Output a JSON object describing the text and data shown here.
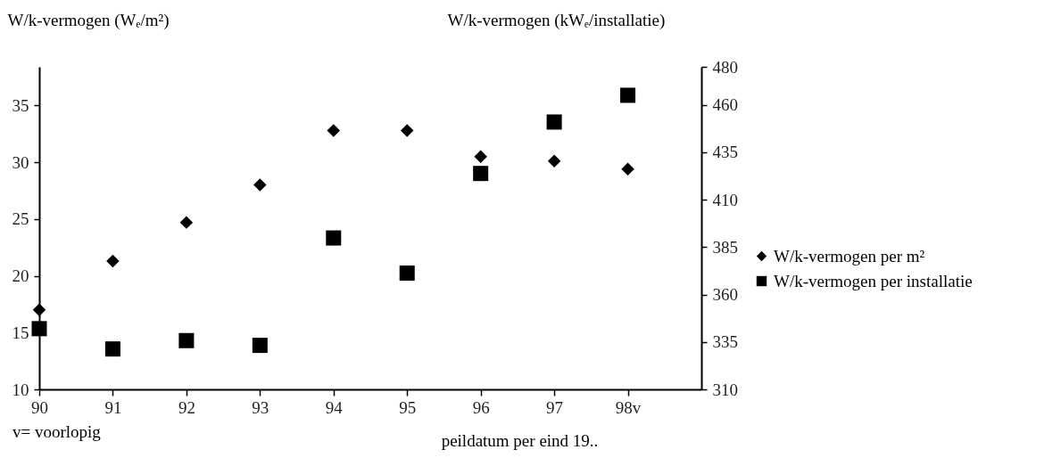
{
  "chart_data": {
    "type": "scatter",
    "categories": [
      "90",
      "91",
      "92",
      "93",
      "94",
      "95",
      "96",
      "97",
      "98v"
    ],
    "xlabel": "peildatum per eind 19..",
    "ylabel": "W/k-vermogen (Wₑ/m²)",
    "y2label": "W/k-vermogen (kWₑ/installatie)",
    "ylim": [
      10,
      38.4
    ],
    "yticks": [
      10,
      15,
      20,
      25,
      30,
      35
    ],
    "y2lim": [
      310,
      480
    ],
    "y2ticks": [
      310,
      335,
      360,
      385,
      410,
      435,
      460,
      480
    ],
    "series": [
      {
        "name": "W/k-vermogen per m²",
        "color": "#000000",
        "marker": "diamond",
        "values": [
          17.0,
          21.3,
          24.7,
          28.0,
          32.8,
          32.8,
          30.5,
          30.1,
          29.4
        ]
      },
      {
        "name": "W/k-vermogen per installatie",
        "color": "#000000",
        "marker": "square",
        "axis": "y2",
        "values": [
          342.0,
          331.3,
          335.7,
          333.2,
          389.8,
          371.3,
          423.8,
          450.9,
          465.0
        ]
      }
    ],
    "legend": "right",
    "grid": false,
    "annotations": [
      "v= voorlopig"
    ]
  }
}
